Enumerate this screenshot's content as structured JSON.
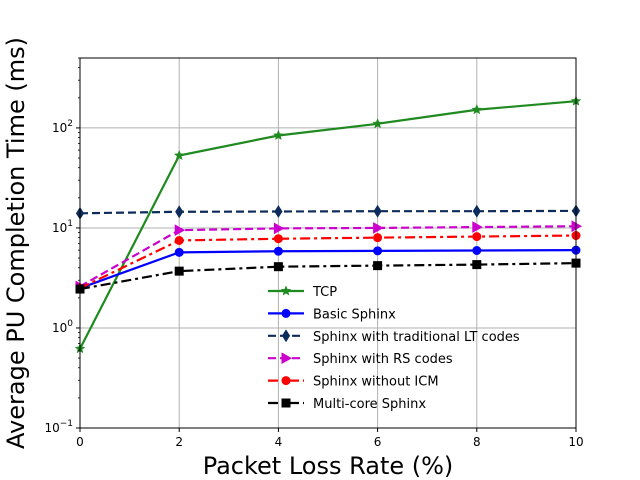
{
  "chart_data": {
    "type": "line",
    "xlabel": "Packet Loss Rate (%)",
    "ylabel": "Average PU Completion Time (ms)",
    "yscale": "log",
    "xlim": [
      0,
      10
    ],
    "ylim": [
      0.1,
      500
    ],
    "x_ticks": [
      0,
      2,
      4,
      6,
      8,
      10
    ],
    "x_tick_labels": [
      "0",
      "2",
      "4",
      "6",
      "8",
      "10"
    ],
    "y_ticks": [
      0.1,
      1,
      10,
      100
    ],
    "y_tick_labels": [
      {
        "base": "10",
        "exp": "−1"
      },
      {
        "base": "10",
        "exp": "0"
      },
      {
        "base": "10",
        "exp": "1"
      },
      {
        "base": "10",
        "exp": "2"
      }
    ],
    "grid": true,
    "legend_position": "lower-center",
    "x": [
      0,
      2,
      4,
      6,
      8,
      10
    ],
    "series": [
      {
        "name": "TCP",
        "values": [
          0.62,
          53,
          84,
          110,
          152,
          185
        ],
        "color": "#1f8a1f",
        "dash": "solid",
        "marker": "star"
      },
      {
        "name": "Basic Sphinx",
        "values": [
          2.5,
          5.7,
          5.85,
          5.9,
          5.95,
          6.0
        ],
        "color": "#0000ff",
        "dash": "solid",
        "marker": "circle"
      },
      {
        "name": "Sphinx with traditional LT codes",
        "values": [
          14,
          14.5,
          14.6,
          14.7,
          14.7,
          14.8
        ],
        "color": "#0d2c5c",
        "dash": "dashed",
        "marker": "diamond"
      },
      {
        "name": "Sphinx with RS codes",
        "values": [
          2.6,
          9.5,
          9.9,
          10.0,
          10.2,
          10.4
        ],
        "color": "#cc00cc",
        "dash": "dashed",
        "marker": "triangle-right"
      },
      {
        "name": "Sphinx without ICM",
        "values": [
          2.5,
          7.5,
          7.8,
          8.0,
          8.2,
          8.4
        ],
        "color": "#ff0000",
        "dash": "dashdot",
        "marker": "circle"
      },
      {
        "name": "Multi-core Sphinx",
        "values": [
          2.45,
          3.7,
          4.1,
          4.2,
          4.3,
          4.45
        ],
        "color": "#000000",
        "dash": "dashdot",
        "marker": "square"
      }
    ]
  }
}
